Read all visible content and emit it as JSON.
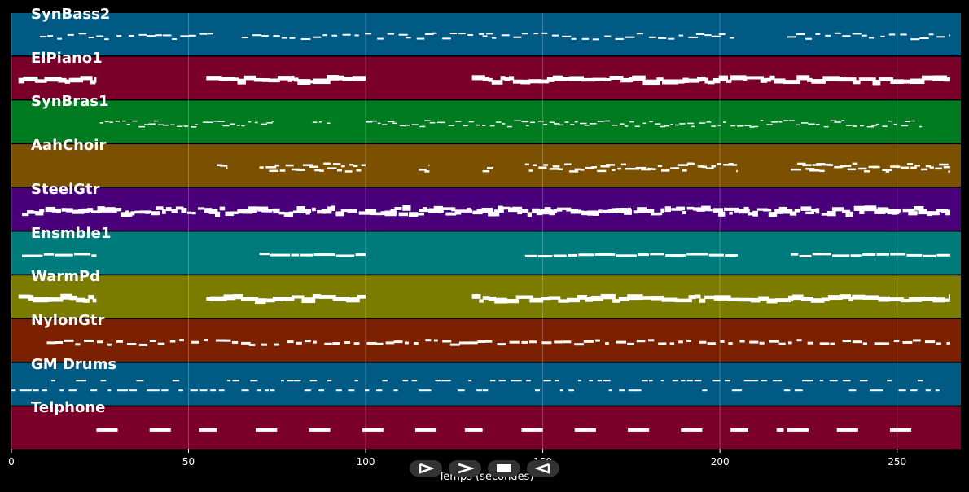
{
  "x_axis": {
    "label": "Temps (secondes)",
    "range": [
      0,
      268
    ],
    "ticks": [
      0,
      50,
      100,
      150,
      200,
      250
    ],
    "tick_labels": [
      "0",
      "50",
      "100",
      "150",
      "200",
      "250"
    ]
  },
  "tracks": [
    {
      "name": "SynBass2",
      "color": "#015a84",
      "style": "sparse",
      "segments": [
        [
          8,
          57
        ],
        [
          65,
          136
        ],
        [
          133,
          204
        ],
        [
          219,
          265
        ]
      ]
    },
    {
      "name": "ElPiano1",
      "color": "#7b0029",
      "style": "blocks",
      "segments": [
        [
          2,
          24
        ],
        [
          55,
          100
        ],
        [
          130,
          265
        ]
      ]
    },
    {
      "name": "SynBras1",
      "color": "#007b1f",
      "style": "fine",
      "segments": [
        [
          25,
          74
        ],
        [
          85,
          90
        ],
        [
          100,
          257
        ]
      ]
    },
    {
      "name": "AahChoir",
      "color": "#7b5000",
      "style": "dense",
      "segments": [
        [
          58,
          61
        ],
        [
          70,
          100
        ],
        [
          115,
          118
        ],
        [
          133,
          136
        ],
        [
          145,
          205
        ],
        [
          220,
          265
        ]
      ]
    },
    {
      "name": "SteelGtr",
      "color": "#4b007b",
      "style": "busy",
      "segments": [
        [
          3,
          265
        ]
      ]
    },
    {
      "name": "Ensmble1",
      "color": "#007b7b",
      "style": "lines",
      "segments": [
        [
          3,
          24
        ],
        [
          70,
          100
        ],
        [
          145,
          205
        ],
        [
          220,
          265
        ]
      ]
    },
    {
      "name": "WarmPd",
      "color": "#7b7b00",
      "style": "blocks",
      "segments": [
        [
          2,
          24
        ],
        [
          55,
          100
        ],
        [
          130,
          265
        ]
      ]
    },
    {
      "name": "NylonGtr",
      "color": "#7b2000",
      "style": "dashes",
      "segments": [
        [
          10,
          265
        ]
      ]
    },
    {
      "name": "GM Drums",
      "color": "#015a84",
      "style": "drums",
      "segments": [
        [
          0,
          262
        ]
      ]
    },
    {
      "name": "Telphone",
      "color": "#7b0029",
      "style": "bars",
      "segments": [
        [
          24,
          30
        ],
        [
          39,
          45
        ],
        [
          53,
          58
        ],
        [
          69,
          75
        ],
        [
          84,
          90
        ],
        [
          99,
          105
        ],
        [
          114,
          120
        ],
        [
          128,
          133
        ],
        [
          144,
          150
        ],
        [
          159,
          165
        ],
        [
          174,
          180
        ],
        [
          189,
          195
        ],
        [
          203,
          208
        ],
        [
          216,
          218
        ],
        [
          219,
          225
        ],
        [
          233,
          239
        ],
        [
          248,
          254
        ]
      ]
    }
  ],
  "controls": [
    {
      "name": "play-forward-icon"
    },
    {
      "name": "fast-forward-icon"
    },
    {
      "name": "stop-icon"
    },
    {
      "name": "play-reverse-icon"
    }
  ]
}
